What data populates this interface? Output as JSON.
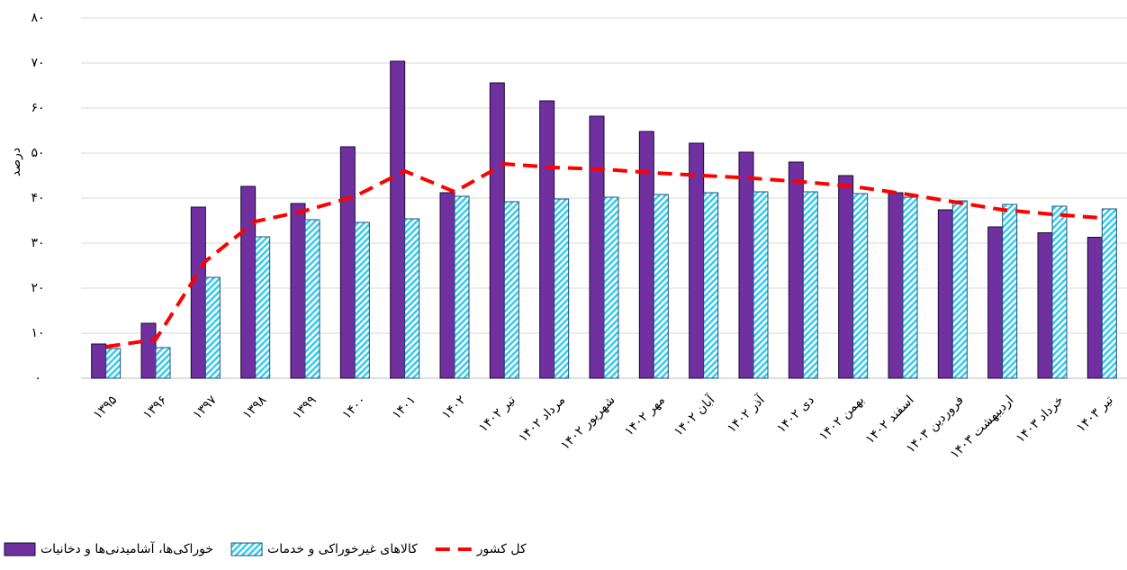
{
  "chart_data": {
    "type": "bar_line",
    "y_label": "درصد",
    "categories": [
      "۱۳۹۵",
      "۱۳۹۶",
      "۱۳۹۷",
      "۱۳۹۸",
      "۱۳۹۹",
      "۱۴۰۰",
      "۱۴۰۱",
      "۱۴۰۲",
      "تیر ۱۴۰۲",
      "مرداد ۱۴۰۲",
      "شهریور ۱۴۰۲",
      "مهر ۱۴۰۲",
      "آبان ۱۴۰۲",
      "آذر ۱۴۰۲",
      "دی ۱۴۰۲",
      "بهمن ۱۴۰۲",
      "اسفند ۱۴۰۲",
      "فروردین ۱۴۰۳",
      "اردیبهشت ۱۴۰۳",
      "خرداد ۱۴۰۳",
      "تیر ۱۴۰۳"
    ],
    "series": [
      {
        "name": "خوراکی‌ها، آشامیدنی‌ها و دخانیات",
        "type": "bar",
        "color": "#7030a0",
        "values": [
          7.6,
          12.2,
          38,
          42.6,
          38.8,
          51.4,
          70.4,
          41.2,
          65.6,
          61.6,
          58.2,
          54.8,
          52.2,
          50.2,
          48,
          45,
          41.2,
          37.4,
          33.6,
          32.3,
          31.3
        ]
      },
      {
        "name": "کالاهای غیرخوراکی و خدمات",
        "type": "bar",
        "color": "#33ccee",
        "hatch": true,
        "values": [
          6.6,
          6.8,
          22.4,
          31.4,
          35.2,
          34.6,
          35.4,
          40.4,
          39.2,
          39.8,
          40.2,
          40.8,
          41.2,
          41.4,
          41.4,
          41,
          40.2,
          39.4,
          38.6,
          38.2,
          37.6
        ]
      },
      {
        "name": "کل کشور",
        "type": "line",
        "color": "#ff0000",
        "dashed": true,
        "values": [
          7,
          8.6,
          26,
          34.8,
          37.2,
          40.4,
          46,
          41.4,
          47.6,
          46.8,
          46.4,
          45.6,
          45,
          44.4,
          43.6,
          42.6,
          41,
          39.2,
          37.4,
          36.4,
          35.6
        ]
      }
    ],
    "ylim": [
      0,
      80
    ],
    "yticks": [
      {
        "value": 0,
        "label": "۰"
      },
      {
        "value": 10,
        "label": "۱۰"
      },
      {
        "value": 20,
        "label": "۲۰"
      },
      {
        "value": 30,
        "label": "۳۰"
      },
      {
        "value": 40,
        "label": "۴۰"
      },
      {
        "value": 50,
        "label": "۵۰"
      },
      {
        "value": 60,
        "label": "۶۰"
      },
      {
        "value": 70,
        "label": "۷۰"
      },
      {
        "value": 80,
        "label": "۸۰"
      }
    ],
    "grid": true,
    "legend": "bottom"
  }
}
